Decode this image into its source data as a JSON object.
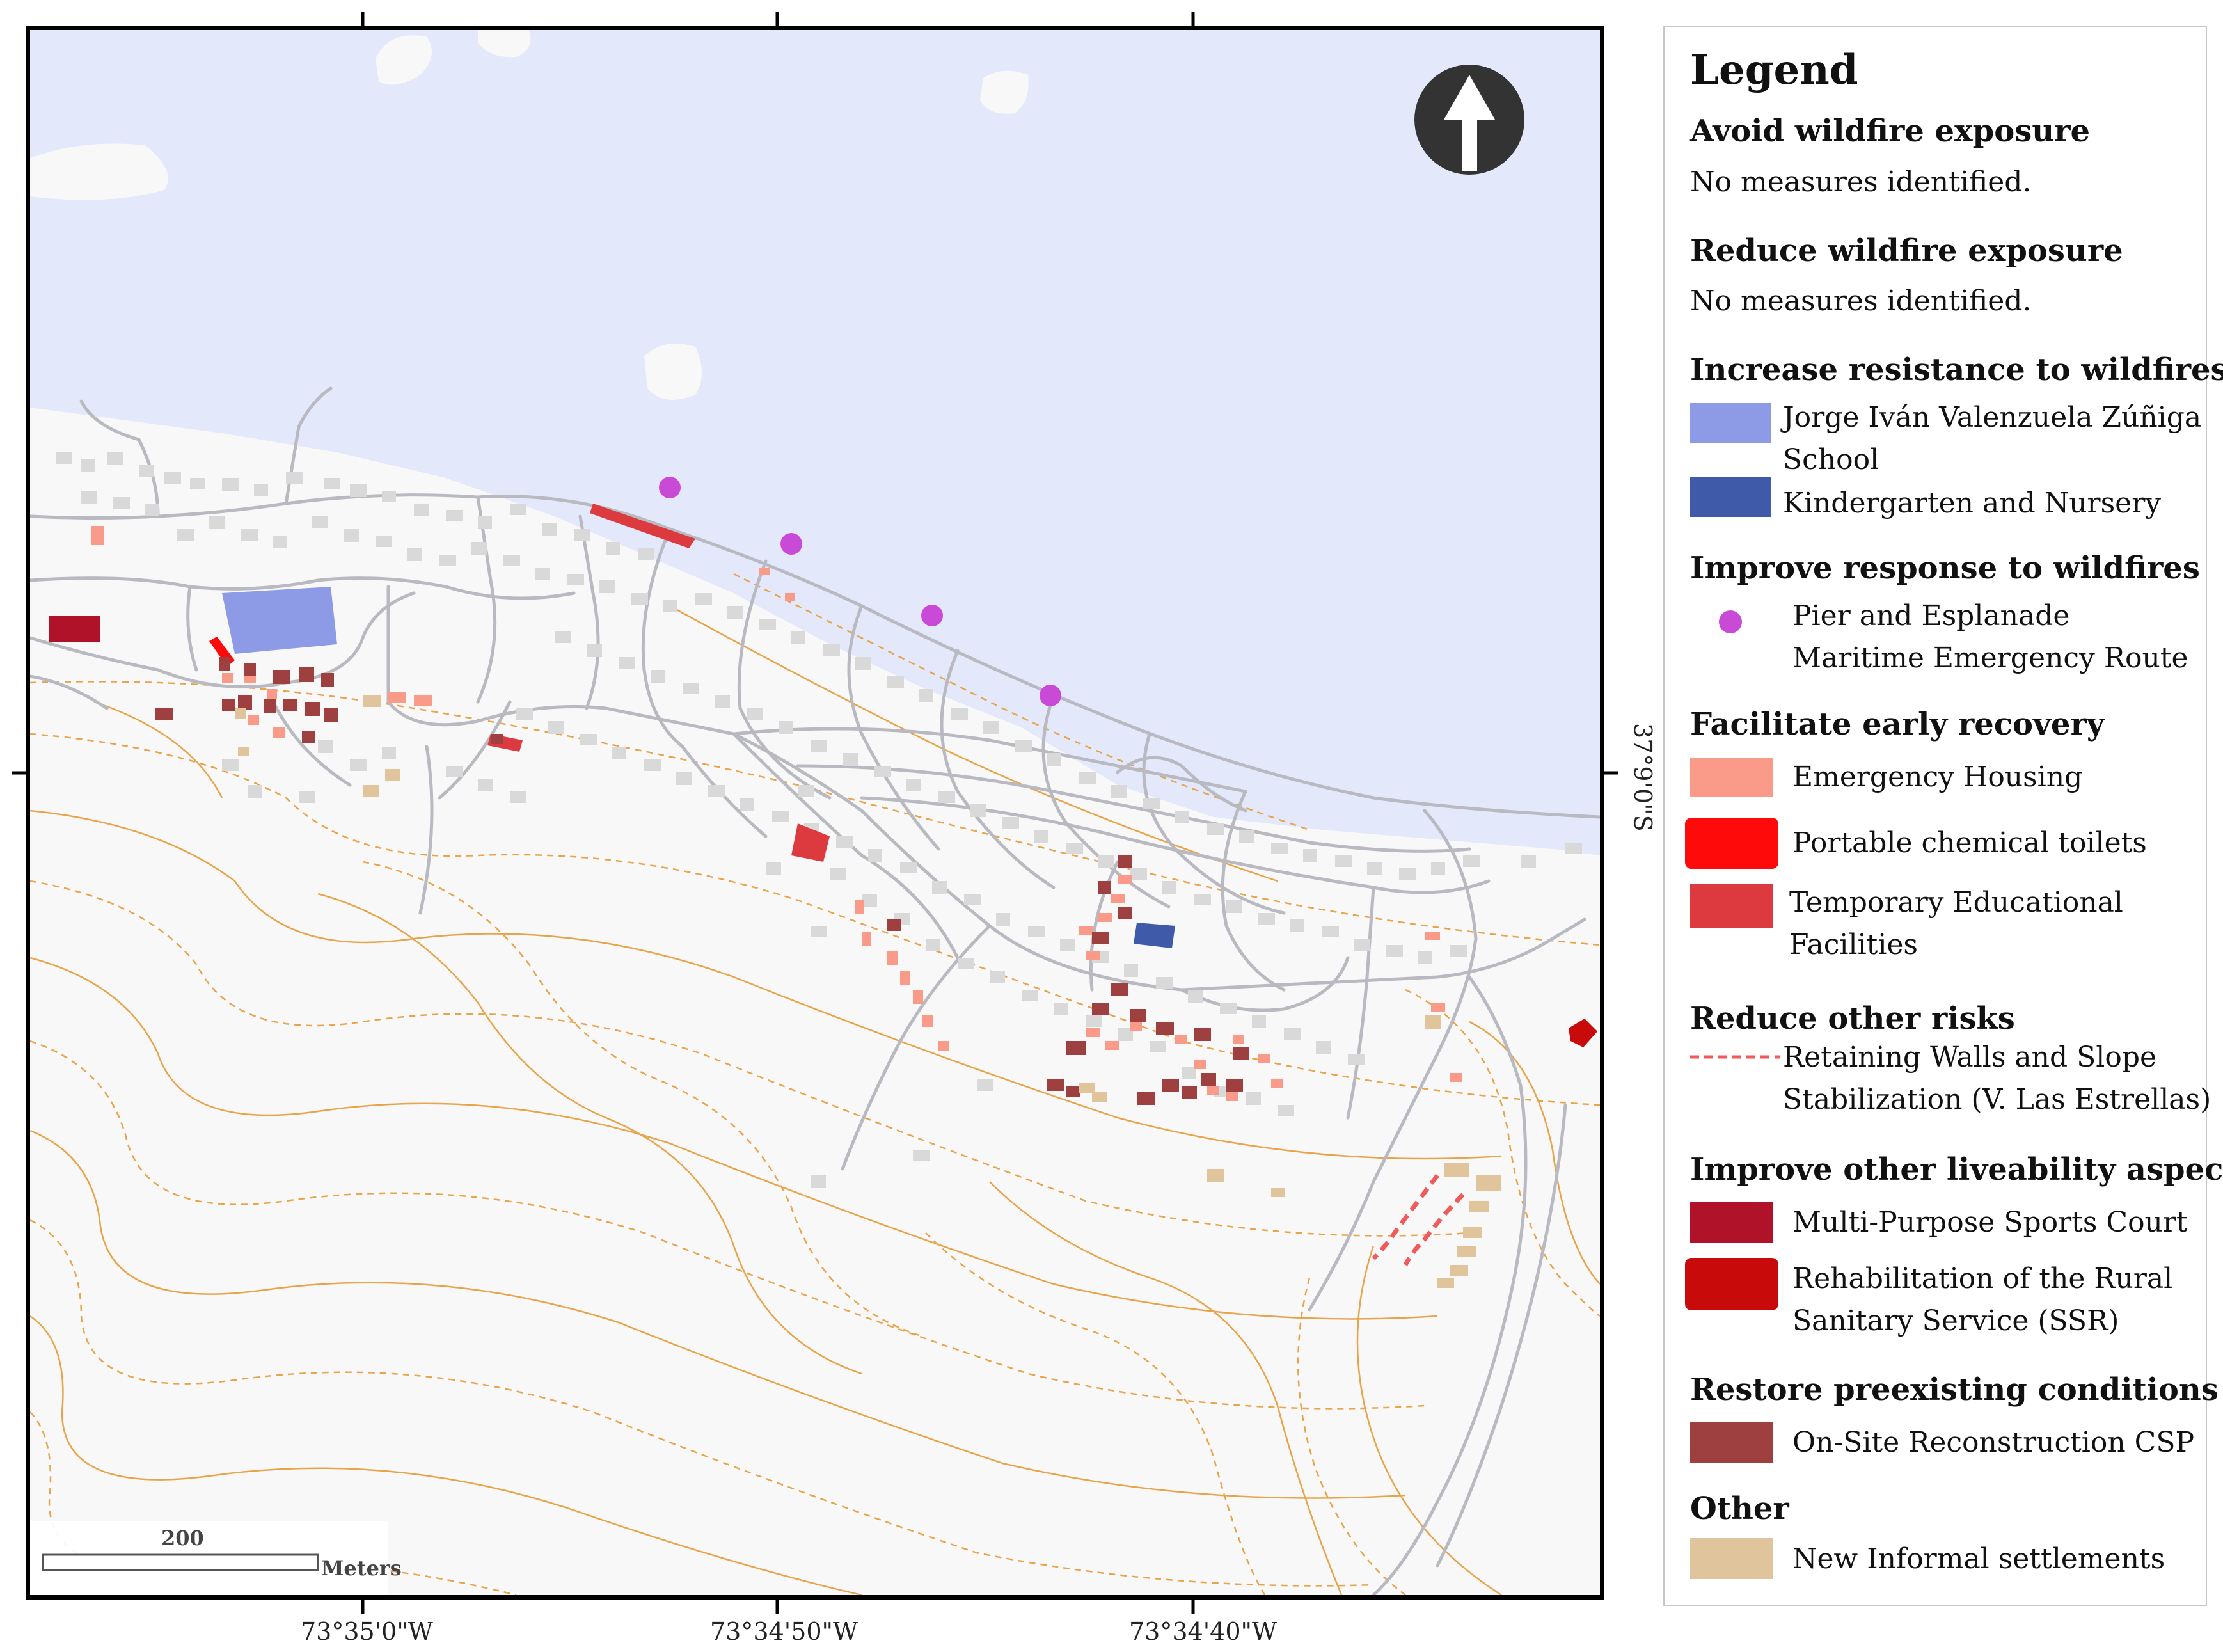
{
  "map": {
    "coord_labels": {
      "lon_1": "73°35'0\"W",
      "lon_2": "73°34'50\"W",
      "lon_3": "73°34'40\"W",
      "lat_1": "37°9'0\"S"
    },
    "scale_bar": {
      "value": "200",
      "unit": "Meters"
    },
    "north_arrow": "north-arrow-icon",
    "colors": {
      "sea": "#e3e8fa",
      "land": "#f8f8f8",
      "roads": "#b9b9c2",
      "buildings": "#d9d9d9",
      "contour": "#e8a44a"
    }
  },
  "legend": {
    "title": "Legend",
    "sections": [
      {
        "heading": "Avoid wildfire exposure",
        "note": "No measures identified."
      },
      {
        "heading": "Reduce wildfire exposure",
        "note": "No measures identified."
      },
      {
        "heading": "Increase resistance to wildfires",
        "items": [
          {
            "label": [
              "Jorge Iván Valenzuela Zúñiga",
              "School"
            ],
            "color": "#8d9be6",
            "symbol": "rect"
          },
          {
            "label": [
              "Kindergarten and Nursery"
            ],
            "color": "#3f5aa8",
            "symbol": "rect"
          }
        ]
      },
      {
        "heading": "Improve response to wildfires",
        "items": [
          {
            "label": [
              "Pier and Esplanade",
              "Maritime Emergency Route"
            ],
            "color": "#c84ad6",
            "symbol": "circle"
          }
        ]
      },
      {
        "heading": "Facilitate early recovery",
        "items": [
          {
            "label": [
              "Emergency Housing"
            ],
            "color": "#fa9a88",
            "symbol": "rect"
          },
          {
            "label": [
              "Portable chemical toilets"
            ],
            "color": "#ff0a0a",
            "symbol": "rounded"
          },
          {
            "label": [
              "Temporary Educational",
              "Facilities"
            ],
            "color": "#dc3a3f",
            "symbol": "rect"
          }
        ]
      },
      {
        "heading": "Reduce other risks",
        "items": [
          {
            "label": [
              "Retaining Walls and Slope",
              "Stabilization (V. Las Estrellas)"
            ],
            "color": "#f05a5a",
            "symbol": "dash"
          }
        ]
      },
      {
        "heading": "Improve other liveability aspects",
        "items": [
          {
            "label": [
              "Multi-Purpose Sports Court"
            ],
            "color": "#b0122a",
            "symbol": "rect"
          },
          {
            "label": [
              "Rehabilitation of the Rural",
              "Sanitary Service (SSR)"
            ],
            "color": "#c80a0a",
            "symbol": "rounded"
          }
        ]
      },
      {
        "heading": "Restore preexisting conditions",
        "items": [
          {
            "label": [
              "On-Site Reconstruction CSP"
            ],
            "color": "#9e4040",
            "symbol": "rect"
          }
        ]
      },
      {
        "heading": "Other",
        "items": [
          {
            "label": [
              "New Informal settlements"
            ],
            "color": "#e0c59c",
            "symbol": "rect"
          }
        ]
      }
    ]
  }
}
